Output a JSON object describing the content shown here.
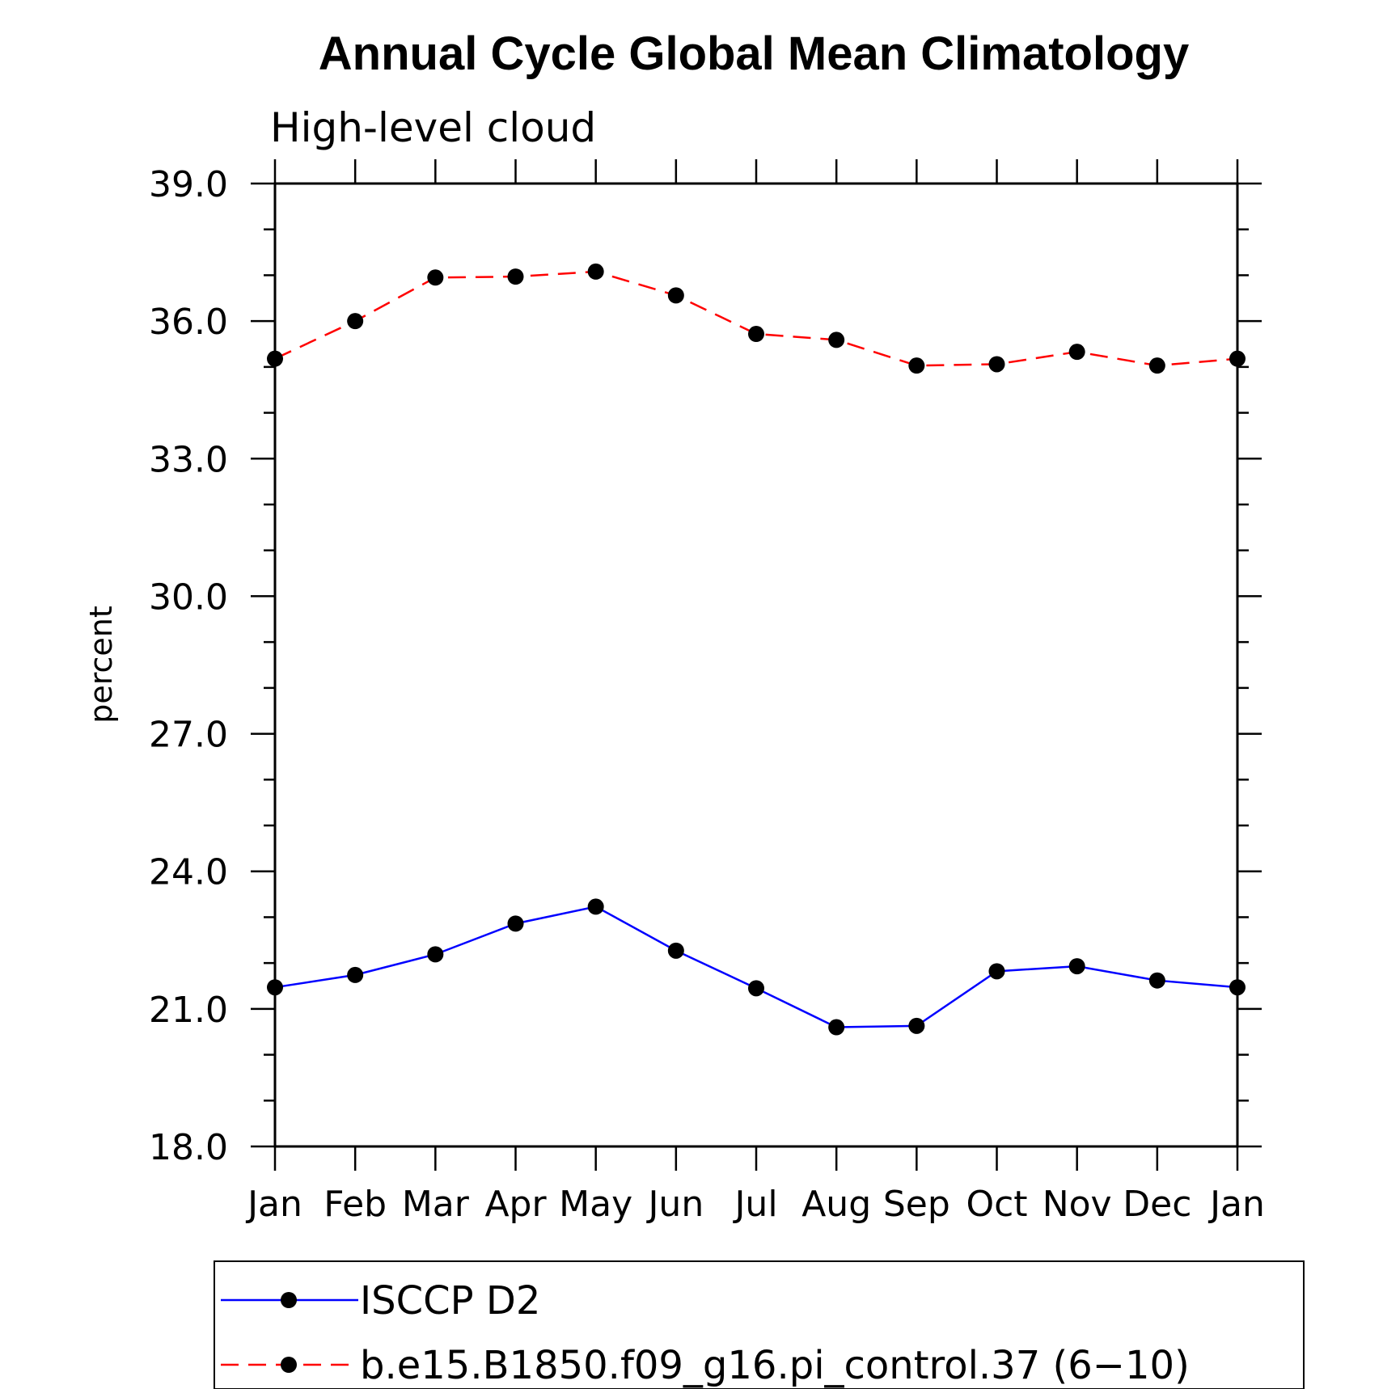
{
  "chart_data": {
    "type": "line",
    "title": "Annual Cycle Global Mean Climatology",
    "subtitle": "High-level cloud",
    "xlabel": "",
    "ylabel": "percent",
    "categories": [
      "Jan",
      "Feb",
      "Mar",
      "Apr",
      "May",
      "Jun",
      "Jul",
      "Aug",
      "Sep",
      "Oct",
      "Nov",
      "Dec",
      "Jan"
    ],
    "ylim": [
      18.0,
      39.0
    ],
    "yticks": [
      "18.0",
      "21.0",
      "24.0",
      "27.0",
      "30.0",
      "33.0",
      "36.0",
      "39.0"
    ],
    "grid": false,
    "legend_position": "bottom",
    "series": [
      {
        "name": "ISCCP D2",
        "color": "#0000ff",
        "line_style": "solid",
        "marker": "filled-circle",
        "values": [
          21.47,
          21.74,
          22.19,
          22.86,
          23.23,
          22.27,
          21.45,
          20.6,
          20.63,
          21.82,
          21.93,
          21.62,
          21.47
        ]
      },
      {
        "name": "b.e15.B1850.f09_g16.pi_control.37 (6−10)",
        "color": "#ff0000",
        "line_style": "dashed",
        "marker": "filled-circle",
        "values": [
          35.18,
          36.0,
          36.95,
          36.97,
          37.08,
          36.56,
          35.72,
          35.59,
          35.03,
          35.06,
          35.33,
          35.03,
          35.18
        ]
      }
    ]
  }
}
